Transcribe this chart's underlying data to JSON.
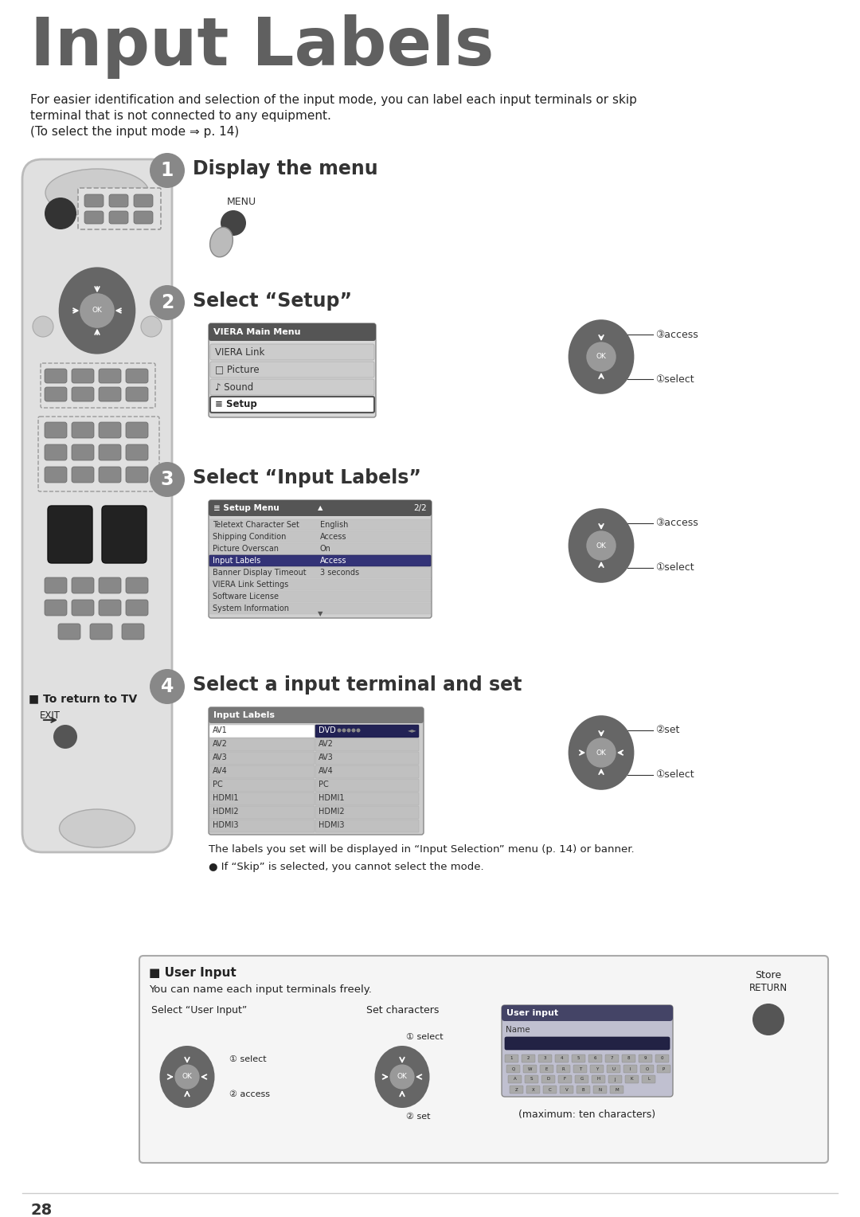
{
  "bg_color": "#ffffff",
  "title": "Input Labels",
  "title_color": "#606060",
  "intro_line1": "For easier identification and selection of the input mode, you can label each input terminals or skip",
  "intro_line2": "terminal that is not connected to any equipment.",
  "intro_line3": "(To select the input mode ⇒ p. 14)",
  "step1_title": "Display the menu",
  "step1_sub": "MENU",
  "step2_title": "Select “Setup”",
  "step3_title": "Select “Input Labels”",
  "step4_title": "Select a input terminal and set",
  "main_menu_title": "VIERA Main Menu",
  "main_menu_items": [
    "VIERA Link",
    "□ Picture",
    "♪ Sound",
    "≡ Setup"
  ],
  "main_menu_selected": 3,
  "setup_menu_title": "≡ Setup Menu",
  "setup_menu_page": "2/2",
  "setup_menu_items": [
    "Teletext Character Set",
    "Shipping Condition",
    "Picture Overscan",
    "Input Labels",
    "Banner Display Timeout",
    "VIERA Link Settings",
    "Software License",
    "System Information"
  ],
  "setup_menu_values": [
    "English",
    "Access",
    "On",
    "Access",
    "3 seconds",
    "",
    "",
    ""
  ],
  "setup_menu_selected": 3,
  "input_labels_title": "Input Labels",
  "input_labels_rows": [
    [
      "AV1",
      "DVD"
    ],
    [
      "AV2",
      "AV2"
    ],
    [
      "AV3",
      "AV3"
    ],
    [
      "AV4",
      "AV4"
    ],
    [
      "PC",
      "PC"
    ],
    [
      "HDMI1",
      "HDMI1"
    ],
    [
      "HDMI2",
      "HDMI2"
    ],
    [
      "HDMI3",
      "HDMI3"
    ]
  ],
  "bottom_text1": "The labels you set will be displayed in “Input Selection” menu (p. 14) or banner.",
  "bottom_text2": "● If “Skip” is selected, you cannot select the mode.",
  "return_label": "■ To return to TV",
  "return_sub": "EXIT",
  "user_input_title": "■ User Input",
  "user_input_text": "You can name each input terminals freely.",
  "user_input_step1": "Select “User Input”",
  "user_input_step2": "Set characters",
  "select_label1": "① select",
  "access_label": "② access",
  "select_label2": "① select",
  "set_label": "② set",
  "max_chars": "(maximum: ten characters)",
  "store_label": "Store",
  "return_btn_label": "RETURN",
  "access_label2": "③access",
  "select_label3": "①select",
  "set_label2": "②set",
  "page_num": "28"
}
